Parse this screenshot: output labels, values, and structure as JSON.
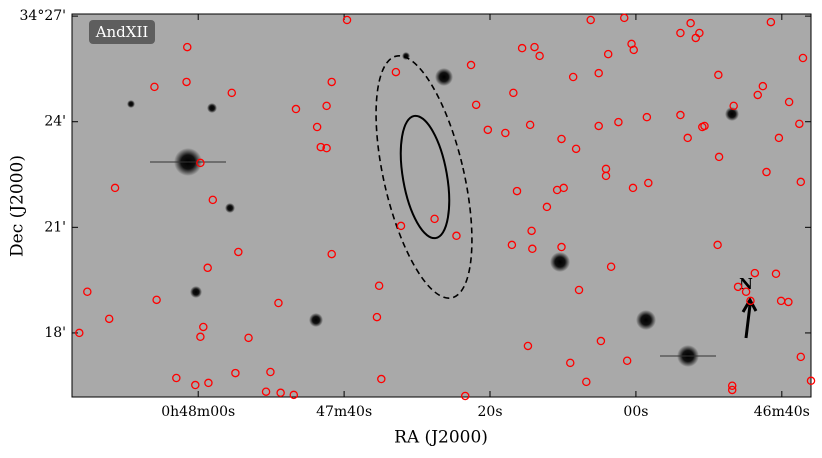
{
  "chart_data": {
    "type": "scatter",
    "xlabel": "RA (J2000)",
    "ylabel": "Dec (J2000)",
    "annotations": [
      "AndXII",
      "N"
    ],
    "color": "#ff0000",
    "xlim": [
      137.3,
      36.0
    ],
    "ylim": [
      16.18,
      27.06
    ],
    "xticks": [
      {
        "value": 120,
        "label": "0h48m00s"
      },
      {
        "value": 100,
        "label": "47m40s"
      },
      {
        "value": 80,
        "label": "20s"
      },
      {
        "value": 60,
        "label": "00s"
      },
      {
        "value": 40,
        "label": "46m40s"
      }
    ],
    "yticks": [
      {
        "value": 27,
        "label": "34°27'"
      },
      {
        "value": 24,
        "label": "24'"
      },
      {
        "value": 21,
        "label": "21'"
      },
      {
        "value": 18,
        "label": "18'"
      }
    ],
    "x": [
      99.6,
      121.5,
      126.0,
      121.6,
      115.4,
      101.7,
      102.4,
      106.6,
      103.7,
      103.2,
      102.4,
      119.7,
      131.4,
      118.0,
      114.5,
      101.7,
      118.7,
      135.2,
      125.7,
      109.0,
      95.2,
      132.2,
      136.3,
      119.3,
      119.7,
      113.1,
      95.5,
      114.9,
      110.1,
      123.0,
      118.6,
      120.4,
      110.7,
      108.7,
      106.9,
      94.9,
      83.4,
      92.9,
      82.6,
      81.9,
      80.3,
      92.2,
      87.6,
      84.6,
      76.8,
      75.6,
      73.9,
      73.2,
      68.6,
      66.2,
      61.6,
      63.8,
      65.1,
      60.3,
      60.6,
      58.5,
      62.4,
      65.1,
      74.5,
      77.9,
      70.2,
      68.2,
      64.1,
      64.1,
      76.3,
      70.8,
      69.9,
      72.2,
      74.3,
      77.0,
      74.2,
      70.2,
      60.4,
      58.3,
      63.4,
      67.8,
      64.8,
      61.2,
      69.0,
      74.8,
      66.8,
      53.9,
      52.5,
      51.3,
      51.8,
      48.7,
      41.5,
      37.1,
      42.6,
      43.3,
      46.6,
      53.9,
      50.6,
      50.9,
      52.9,
      40.4,
      48.6,
      37.6,
      39.0,
      42.1,
      37.4,
      48.8,
      43.7,
      40.8,
      46.0,
      44.9,
      40.1,
      39.1,
      44.3,
      37.4,
      36.0,
      46.8,
      46.8
    ],
    "values": [
      26.89,
      26.12,
      24.99,
      25.13,
      24.82,
      25.13,
      24.45,
      24.36,
      23.85,
      23.28,
      23.25,
      22.83,
      22.12,
      21.78,
      20.3,
      20.24,
      19.85,
      19.17,
      18.94,
      18.85,
      19.34,
      18.4,
      18.0,
      18.17,
      17.89,
      17.86,
      18.45,
      16.86,
      16.89,
      16.72,
      16.58,
      16.52,
      16.33,
      16.3,
      16.24,
      16.69,
      16.21,
      25.41,
      25.61,
      24.48,
      23.77,
      21.04,
      21.24,
      20.76,
      24.82,
      26.09,
      26.12,
      25.87,
      25.27,
      26.89,
      26.95,
      25.92,
      25.38,
      26.04,
      26.21,
      24.13,
      23.99,
      23.88,
      23.91,
      23.68,
      23.51,
      23.23,
      22.66,
      22.46,
      22.03,
      22.06,
      22.12,
      21.58,
      20.9,
      20.5,
      20.39,
      20.44,
      22.12,
      22.26,
      19.88,
      19.22,
      17.77,
      17.21,
      17.15,
      17.63,
      16.61,
      26.52,
      26.8,
      26.52,
      26.38,
      25.33,
      26.83,
      25.81,
      25.01,
      24.76,
      24.45,
      24.19,
      23.88,
      23.85,
      23.54,
      23.54,
      23.0,
      23.94,
      24.56,
      22.57,
      22.29,
      20.5,
      19.7,
      19.68,
      19.31,
      19.17,
      18.91,
      18.88,
      18.91,
      17.32,
      16.64,
      16.5,
      16.38
    ]
  }
}
